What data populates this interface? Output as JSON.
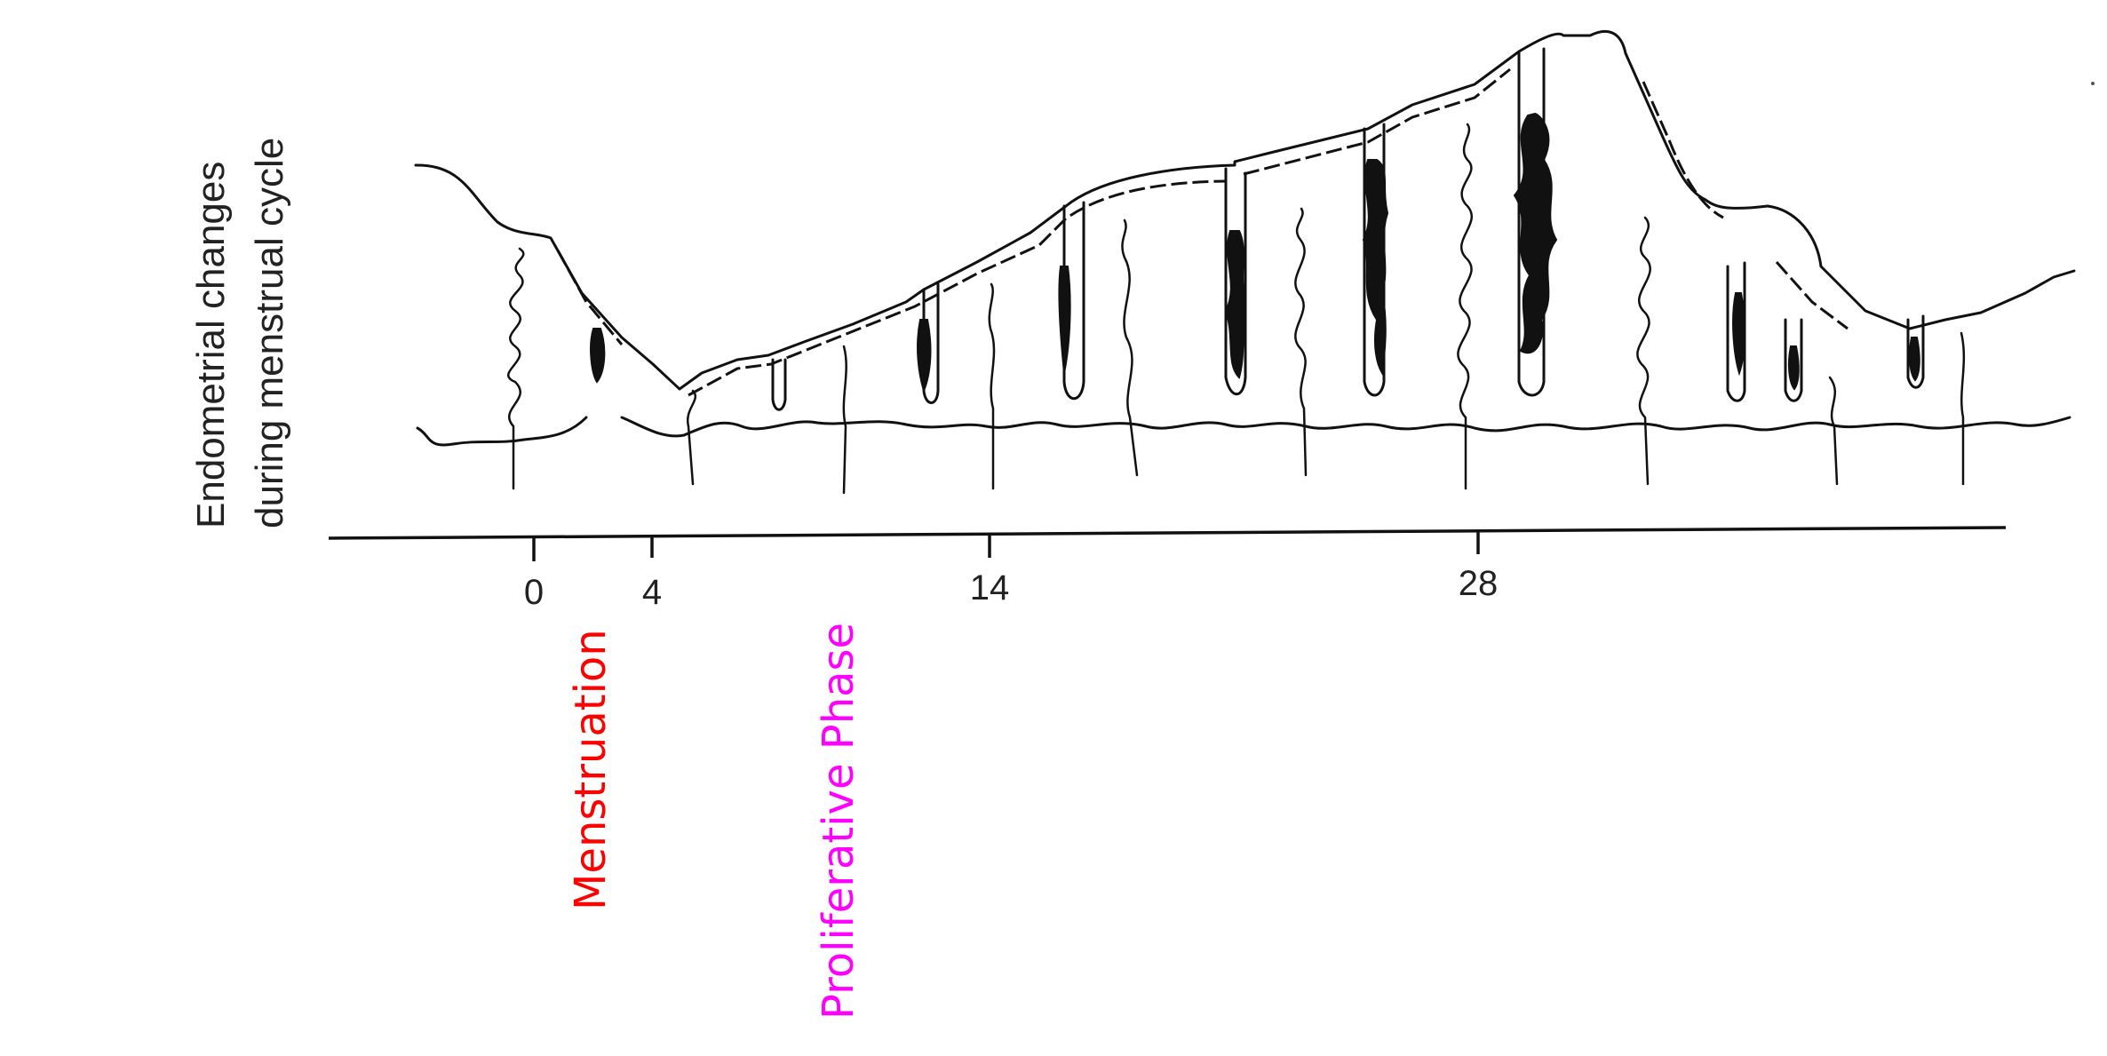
{
  "diagram": {
    "ylabel_line1": "Endometrial changes",
    "ylabel_line2": "during menstrual cycle",
    "axis_ticks": [
      {
        "label": "0"
      },
      {
        "label": "4"
      },
      {
        "label": "14"
      },
      {
        "label": "28"
      }
    ],
    "phases": [
      {
        "label": "Menstruation",
        "color": "#ff0000"
      },
      {
        "label": "Proliferative Phase",
        "color": "#ff00ff"
      }
    ]
  }
}
